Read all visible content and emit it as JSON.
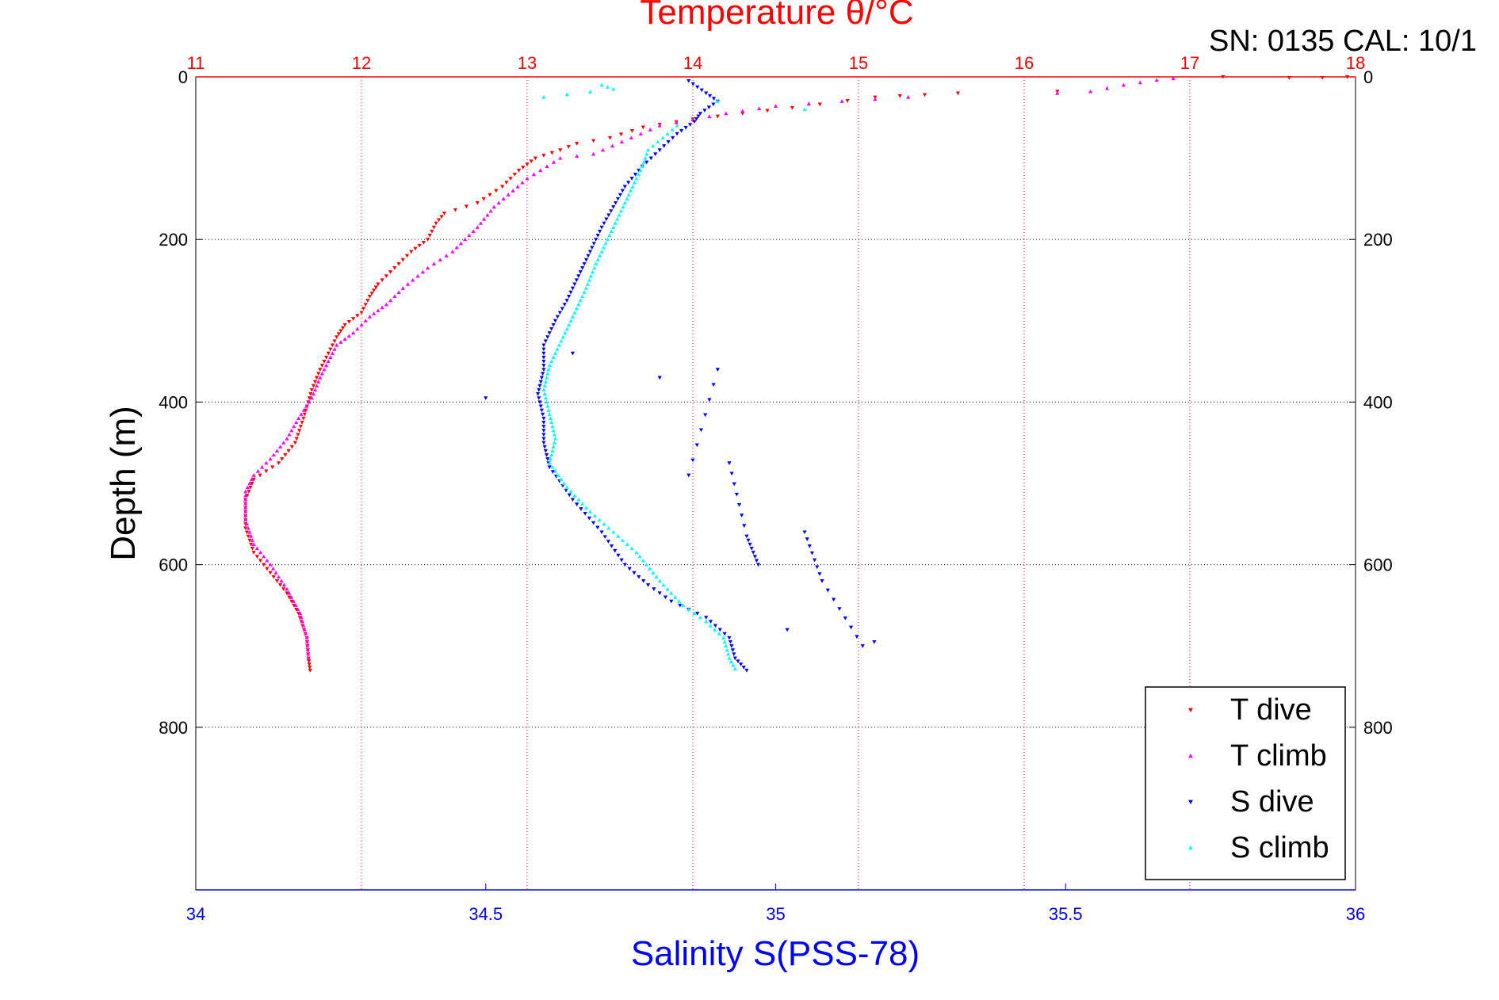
{
  "chart_data": {
    "type": "scatter",
    "title": "Temperature θ/°C",
    "annotation": "SN: 0135  CAL: 10/1",
    "ylabel": "Depth (m)",
    "xlabel_bottom": "Salinity S(PSS-78)",
    "xlabel_top": "Temperature θ/°C",
    "ylim": [
      1000,
      0
    ],
    "y_reversed": true,
    "xlim_temperature": [
      11,
      18
    ],
    "xlim_salinity": [
      34,
      36
    ],
    "temperature_ticks": [
      "11",
      "12",
      "13",
      "14",
      "15",
      "16",
      "17",
      "18"
    ],
    "salinity_ticks": [
      "34",
      "34.5",
      "35",
      "35.5",
      "36"
    ],
    "depth_ticks_left": [
      "0",
      "200",
      "400",
      "600",
      "800"
    ],
    "depth_ticks_right": [
      "0",
      "200",
      "400",
      "600",
      "800"
    ],
    "grid": true,
    "legend_position": "bottom-right",
    "colors": {
      "temperature_axis": "#ff0000",
      "salinity_axis": "#0000ff",
      "T dive": "#ff0000",
      "T climb": "#ff00ff",
      "S dive": "#0000ff",
      "S climb": "#00ffff"
    },
    "series": [
      {
        "name": "T dive",
        "axis": "temperature",
        "marker": "triangle-down",
        "points": [
          [
            17.95,
            0
          ],
          [
            17.8,
            1
          ],
          [
            17.6,
            1
          ],
          [
            17.2,
            0
          ],
          [
            16.2,
            18
          ],
          [
            15.6,
            20
          ],
          [
            15.4,
            22
          ],
          [
            15.1,
            25
          ],
          [
            14.6,
            38
          ],
          [
            14.3,
            45
          ],
          [
            14.0,
            52
          ],
          [
            13.7,
            62
          ],
          [
            13.5,
            75
          ],
          [
            13.3,
            82
          ],
          [
            13.2,
            90
          ],
          [
            13.05,
            100
          ],
          [
            12.95,
            115
          ],
          [
            12.85,
            135
          ],
          [
            12.7,
            155
          ],
          [
            12.5,
            168
          ],
          [
            12.45,
            180
          ],
          [
            12.4,
            200
          ],
          [
            12.3,
            215
          ],
          [
            12.2,
            235
          ],
          [
            12.1,
            255
          ],
          [
            12.05,
            270
          ],
          [
            12.0,
            290
          ],
          [
            11.9,
            305
          ],
          [
            11.85,
            320
          ],
          [
            11.8,
            340
          ],
          [
            11.75,
            360
          ],
          [
            11.7,
            385
          ],
          [
            11.65,
            420
          ],
          [
            11.6,
            450
          ],
          [
            11.5,
            475
          ],
          [
            11.35,
            495
          ],
          [
            11.3,
            520
          ],
          [
            11.3,
            555
          ],
          [
            11.35,
            585
          ],
          [
            11.45,
            610
          ],
          [
            11.55,
            635
          ],
          [
            11.62,
            660
          ],
          [
            11.67,
            690
          ],
          [
            11.68,
            715
          ],
          [
            11.69,
            730
          ]
        ]
      },
      {
        "name": "T climb",
        "axis": "temperature",
        "marker": "triangle-up",
        "points": [
          [
            16.9,
            2
          ],
          [
            16.8,
            4
          ],
          [
            16.6,
            10
          ],
          [
            16.4,
            18
          ],
          [
            16.2,
            20
          ],
          [
            15.3,
            25
          ],
          [
            14.9,
            30
          ],
          [
            14.5,
            36
          ],
          [
            14.2,
            45
          ],
          [
            13.8,
            60
          ],
          [
            13.4,
            95
          ],
          [
            13.2,
            100
          ],
          [
            13.0,
            125
          ],
          [
            12.8,
            160
          ],
          [
            12.7,
            185
          ],
          [
            12.55,
            215
          ],
          [
            12.4,
            235
          ],
          [
            12.25,
            260
          ],
          [
            12.15,
            280
          ],
          [
            12.05,
            295
          ],
          [
            11.95,
            315
          ],
          [
            11.85,
            330
          ],
          [
            11.8,
            350
          ],
          [
            11.75,
            370
          ],
          [
            11.7,
            395
          ],
          [
            11.62,
            420
          ],
          [
            11.55,
            445
          ],
          [
            11.45,
            470
          ],
          [
            11.35,
            490
          ],
          [
            11.3,
            510
          ],
          [
            11.3,
            545
          ],
          [
            11.35,
            575
          ],
          [
            11.45,
            600
          ],
          [
            11.55,
            630
          ],
          [
            11.63,
            660
          ],
          [
            11.67,
            690
          ],
          [
            11.68,
            715
          ]
        ]
      },
      {
        "name": "S dive",
        "axis": "salinity",
        "marker": "triangle-down",
        "points": [
          [
            34.85,
            5
          ],
          [
            34.88,
            20
          ],
          [
            34.9,
            30
          ],
          [
            34.87,
            45
          ],
          [
            34.86,
            55
          ],
          [
            34.83,
            70
          ],
          [
            34.8,
            90
          ],
          [
            34.77,
            110
          ],
          [
            34.74,
            135
          ],
          [
            34.72,
            160
          ],
          [
            34.7,
            185
          ],
          [
            34.68,
            215
          ],
          [
            34.66,
            245
          ],
          [
            34.64,
            275
          ],
          [
            34.62,
            300
          ],
          [
            34.6,
            330
          ],
          [
            34.6,
            360
          ],
          [
            34.59,
            390
          ],
          [
            34.6,
            420
          ],
          [
            34.6,
            450
          ],
          [
            34.61,
            480
          ],
          [
            34.65,
            520
          ],
          [
            34.7,
            560
          ],
          [
            34.74,
            600
          ],
          [
            34.78,
            625
          ],
          [
            34.82,
            645
          ],
          [
            34.88,
            665
          ],
          [
            34.92,
            690
          ],
          [
            34.93,
            715
          ],
          [
            34.95,
            730
          ],
          [
            34.5,
            395
          ],
          [
            34.65,
            340
          ],
          [
            34.8,
            370
          ],
          [
            34.9,
            360
          ],
          [
            34.85,
            490
          ],
          [
            34.92,
            475
          ],
          [
            34.95,
            565
          ],
          [
            34.97,
            600
          ],
          [
            35.05,
            560
          ],
          [
            35.08,
            620
          ],
          [
            35.15,
            700
          ],
          [
            35.17,
            695
          ],
          [
            35.02,
            680
          ]
        ]
      },
      {
        "name": "S climb",
        "axis": "salinity",
        "marker": "triangle-up",
        "points": [
          [
            34.7,
            10
          ],
          [
            34.72,
            15
          ],
          [
            34.6,
            25
          ],
          [
            34.9,
            30
          ],
          [
            35.05,
            40
          ],
          [
            34.83,
            60
          ],
          [
            34.78,
            90
          ],
          [
            34.77,
            110
          ],
          [
            34.75,
            140
          ],
          [
            34.73,
            170
          ],
          [
            34.71,
            200
          ],
          [
            34.69,
            230
          ],
          [
            34.67,
            265
          ],
          [
            34.65,
            295
          ],
          [
            34.63,
            325
          ],
          [
            34.61,
            355
          ],
          [
            34.6,
            385
          ],
          [
            34.61,
            415
          ],
          [
            34.62,
            445
          ],
          [
            34.61,
            475
          ],
          [
            34.64,
            505
          ],
          [
            34.68,
            535
          ],
          [
            34.72,
            560
          ],
          [
            34.76,
            585
          ],
          [
            34.8,
            620
          ],
          [
            34.84,
            650
          ],
          [
            34.88,
            670
          ],
          [
            34.91,
            690
          ],
          [
            34.92,
            715
          ],
          [
            34.93,
            728
          ]
        ]
      }
    ]
  },
  "legend": {
    "items": [
      "T dive",
      "T climb",
      "S dive",
      "S climb"
    ]
  }
}
